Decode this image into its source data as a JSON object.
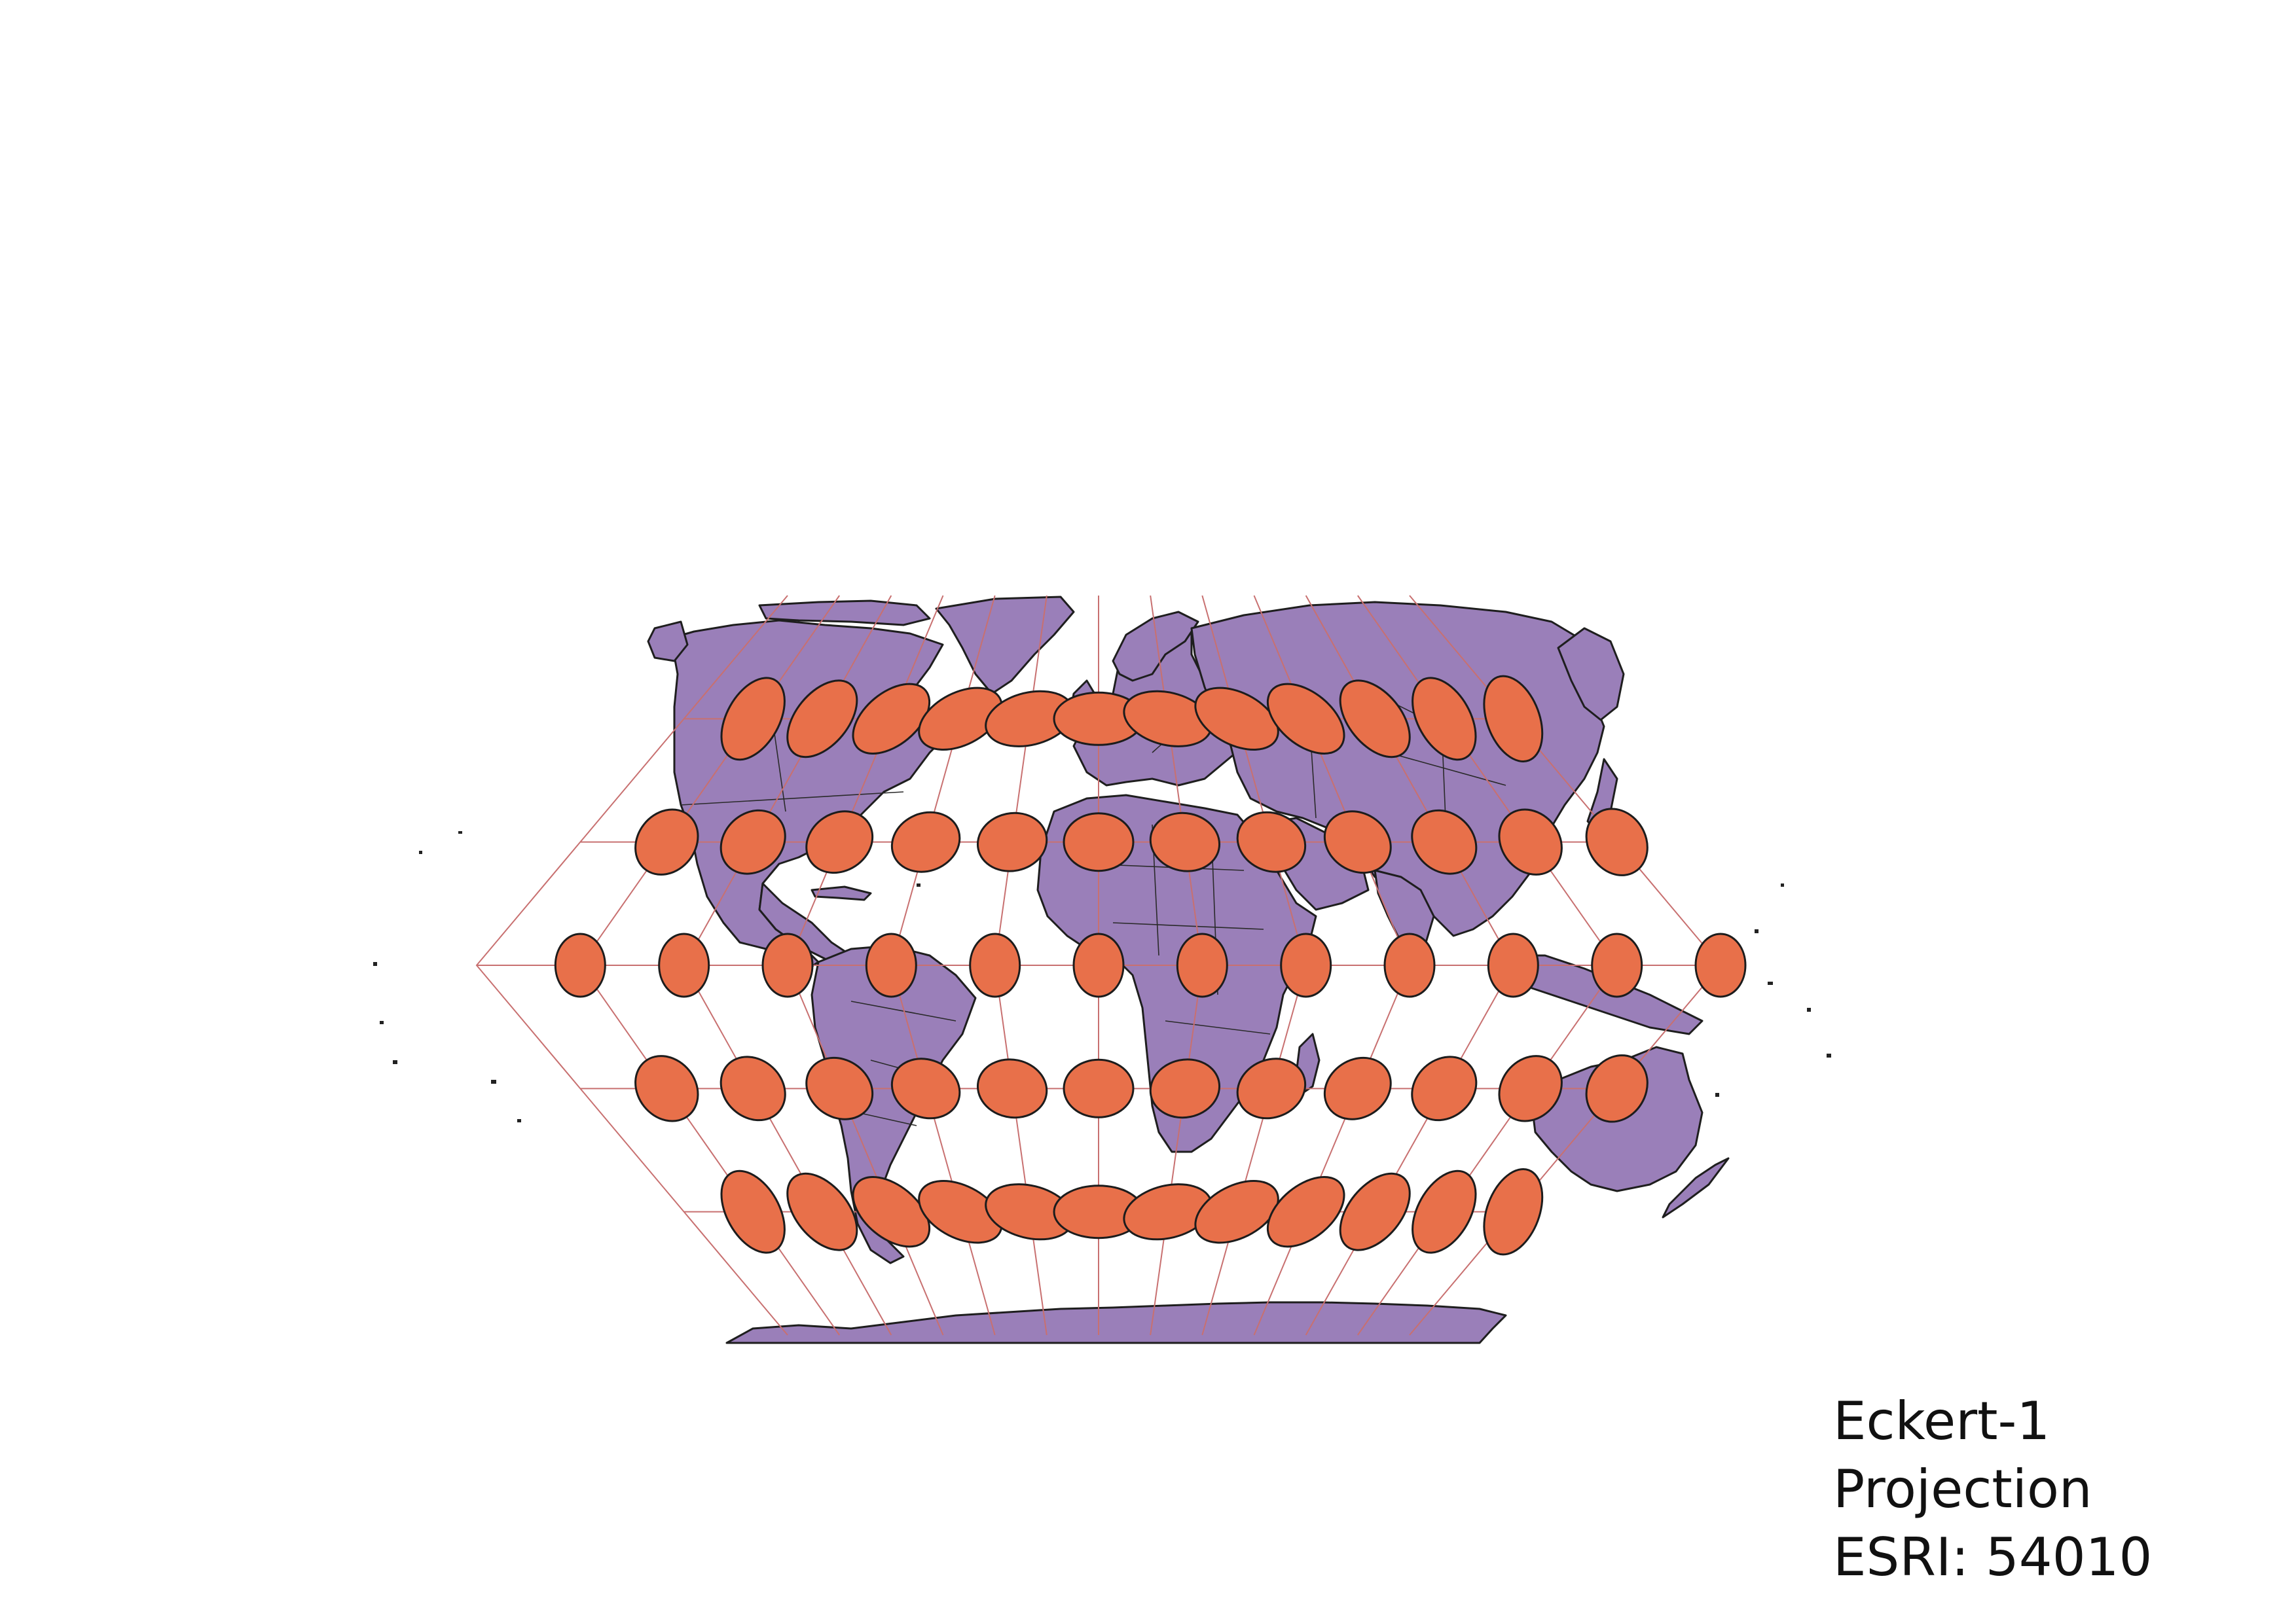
{
  "caption": {
    "line1": "Eckert-1",
    "line2": "Projection",
    "line3": "ESRI: 54010"
  },
  "colors": {
    "land": "#9a7fb9",
    "tissot_fill": "#e8704a",
    "graticule": "#c87070",
    "outline": "#1e1e1e"
  },
  "map_data": {
    "projection": "Eckert I",
    "tissot_latitudes": [
      60,
      30,
      0,
      -30,
      -60
    ],
    "tissot_longitudes": [
      -150,
      -120,
      -90,
      -60,
      -30,
      0,
      30,
      60,
      90,
      120,
      150,
      180
    ],
    "graticule_longitudes": [
      -180,
      -150,
      -120,
      -90,
      -60,
      -30,
      0,
      30,
      60,
      90,
      120,
      150,
      180
    ],
    "graticule_latitudes": [
      60,
      30,
      0,
      -30,
      -60
    ]
  }
}
